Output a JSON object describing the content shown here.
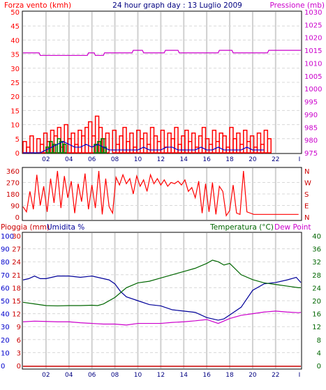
{
  "header": {
    "left": "Forza vento (kmh)",
    "center": "24 hour graph day : 13 Luglio 2009",
    "right": "Pressione (mb)"
  },
  "colors": {
    "wind": "#ff0000",
    "gust": "#0000cc",
    "wind_green": "#008000",
    "pressure": "#cc00cc",
    "rain": "#cc0000",
    "humidity": "#000099",
    "temperature": "#006600",
    "dewpoint": "#cc00cc",
    "grid_v": "#d0d0d0",
    "grid_h": "#d8d8d8"
  },
  "chart_data": [
    {
      "id": "wind_pressure",
      "type": "line",
      "title": "24 hour graph day : 13 Luglio 2009",
      "ylabel_left": "Forza vento (kmh)",
      "ylabel_right": "Pressione (mb)",
      "x_ticks": [
        "02",
        "04",
        "06",
        "08",
        "10",
        "12",
        "14",
        "16",
        "18",
        "20",
        "22"
      ],
      "ylim_left": [
        0,
        50
      ],
      "yticks_left": [
        0,
        5,
        10,
        15,
        20,
        25,
        30,
        35,
        40,
        45,
        50
      ],
      "ylim_right": [
        975,
        1030
      ],
      "yticks_right": [
        975,
        980,
        985,
        990,
        995,
        1000,
        1005,
        1010,
        1015,
        1020,
        1025,
        1030
      ],
      "pressure": {
        "hours": [
          0,
          1.4,
          1.5,
          2.0,
          2.1,
          5.6,
          5.7,
          6.2,
          6.3,
          7.0,
          7.1,
          9.5,
          9.6,
          10.4,
          10.5,
          12.3,
          12.4,
          13.5,
          13.6,
          17.0,
          17.1,
          18.2,
          18.3,
          21.3,
          21.4,
          21.8,
          21.9,
          24.5
        ],
        "values": [
          1014,
          1014,
          1013,
          1013,
          1013,
          1013,
          1014,
          1014,
          1013,
          1013,
          1014,
          1014,
          1015,
          1015,
          1014,
          1014,
          1015,
          1015,
          1014,
          1014,
          1015,
          1015,
          1014,
          1014,
          1015,
          1015,
          1015,
          1015
        ]
      },
      "wind_speed": {
        "hours": [
          0,
          0.3,
          0.6,
          0.9,
          1.2,
          1.5,
          1.8,
          2.1,
          2.4,
          2.7,
          3.0,
          3.3,
          3.6,
          3.9,
          4.2,
          4.5,
          4.8,
          5.1,
          5.4,
          5.7,
          6.0,
          6.3,
          6.6,
          6.9,
          7.2,
          7.5,
          7.8,
          8.1,
          8.4,
          8.7,
          9.0,
          9.3,
          9.6,
          9.9,
          10.2,
          10.5,
          10.8,
          11.1,
          11.4,
          11.7,
          12.0,
          12.3,
          12.6,
          12.9,
          13.2,
          13.5,
          13.8,
          14.1,
          14.4,
          14.7,
          15.0,
          15.3,
          15.6,
          15.9,
          16.2,
          16.5,
          16.8,
          17.1,
          17.4,
          17.7,
          18.0,
          18.3,
          18.6,
          18.9,
          19.2,
          19.5,
          19.8,
          20.1,
          20.4,
          20.7,
          21.0,
          21.3
        ],
        "values": [
          4,
          2,
          6,
          0,
          5,
          3,
          7,
          4,
          8,
          6,
          9,
          2,
          10,
          5,
          7,
          3,
          8,
          6,
          9,
          11,
          6,
          13,
          9,
          5,
          7,
          0,
          8,
          3,
          6,
          9,
          4,
          7,
          2,
          8,
          5,
          7,
          3,
          9,
          6,
          4,
          8,
          2,
          7,
          5,
          9,
          3,
          6,
          8,
          4,
          7,
          2,
          6,
          9,
          5,
          3,
          8,
          4,
          7,
          6,
          2,
          9,
          5,
          7,
          3,
          8,
          4,
          6,
          2,
          7,
          3,
          8,
          5
        ]
      },
      "wind_green": {
        "hours": [
          2.0,
          2.3,
          2.6,
          3.0,
          3.2,
          3.5,
          6.2,
          6.5,
          6.8,
          7.0
        ],
        "values": [
          2,
          4,
          3,
          5,
          4,
          3,
          3,
          4,
          5,
          2
        ]
      },
      "gust": {
        "hours": [
          0,
          0.5,
          1.0,
          1.5,
          2.0,
          2.5,
          3.0,
          3.5,
          4.0,
          4.5,
          5.0,
          5.5,
          6.0,
          6.5,
          7.0,
          7.5,
          8.0,
          8.5,
          9.0,
          9.5,
          10.0,
          10.5,
          11.0,
          11.5,
          12.0,
          12.5,
          13.0,
          13.5,
          14.0,
          14.5,
          15.0,
          15.5,
          16.0,
          16.5,
          17.0,
          17.5,
          18.0,
          18.5,
          19.0,
          19.5,
          20.0,
          20.5,
          21.0
        ],
        "values": [
          0,
          0,
          0,
          0,
          1,
          2,
          3,
          4,
          3,
          2,
          2,
          3,
          2,
          3,
          2,
          1,
          1,
          1,
          1,
          1,
          1,
          2,
          1,
          1,
          1,
          2,
          2,
          1,
          1,
          1,
          1,
          2,
          1,
          1,
          2,
          1,
          1,
          1,
          1,
          2,
          1,
          1,
          1
        ]
      }
    },
    {
      "id": "wind_direction",
      "type": "line",
      "ylim": [
        0,
        360
      ],
      "yticks": [
        0,
        90,
        180,
        270,
        360
      ],
      "y_labels_right": [
        "N",
        "W",
        "S",
        "E",
        "N"
      ],
      "direction": {
        "hours": [
          0,
          0.3,
          0.6,
          0.9,
          1.2,
          1.5,
          1.8,
          2.1,
          2.4,
          2.7,
          3.0,
          3.3,
          3.6,
          3.9,
          4.2,
          4.5,
          4.8,
          5.1,
          5.4,
          5.7,
          6.0,
          6.3,
          6.6,
          6.9,
          7.2,
          7.5,
          7.8,
          8.1,
          8.4,
          8.7,
          9.0,
          9.3,
          9.6,
          9.9,
          10.2,
          10.5,
          10.8,
          11.1,
          11.4,
          11.7,
          12.0,
          12.3,
          12.6,
          12.9,
          13.2,
          13.5,
          13.8,
          14.1,
          14.4,
          14.7,
          15.0,
          15.3,
          15.6,
          15.9,
          16.2,
          16.5,
          16.8,
          17.1,
          17.4,
          17.7,
          18.0,
          18.3,
          18.6,
          18.9,
          19.2,
          19.5,
          19.8,
          20.1,
          20.4,
          20.7,
          21.0,
          21.3,
          21.6,
          22.0,
          23.0,
          24.0
        ],
        "values": [
          80,
          40,
          200,
          60,
          330,
          90,
          240,
          40,
          300,
          110,
          360,
          70,
          320,
          150,
          280,
          30,
          260,
          120,
          340,
          60,
          250,
          70,
          360,
          20,
          300,
          80,
          30,
          310,
          250,
          330,
          260,
          300,
          180,
          320,
          240,
          290,
          200,
          330,
          260,
          300,
          250,
          290,
          240,
          270,
          260,
          280,
          250,
          290,
          200,
          230,
          150,
          280,
          30,
          260,
          40,
          270,
          20,
          240,
          200,
          10,
          50,
          250,
          30,
          20,
          360,
          40,
          30,
          20,
          20,
          20,
          20,
          20,
          20,
          20,
          20,
          20
        ]
      }
    },
    {
      "id": "rain_humidity_temp",
      "type": "line",
      "ylabel_left": "Pioggia (mm)",
      "ylabel_humidity": "Umidita %",
      "ylabel_right": "Temperatura (°C)",
      "ylabel_right2": "Dew Point",
      "ylim_rain": [
        0,
        30
      ],
      "yticks_rain": [
        0,
        3,
        6,
        9,
        12,
        15,
        18,
        21,
        24,
        27,
        30
      ],
      "ylim_humidity": [
        0,
        100
      ],
      "yticks_humidity": [
        0,
        10,
        20,
        30,
        40,
        50,
        60,
        70,
        80,
        90,
        100
      ],
      "ylim_temp": [
        0,
        40
      ],
      "yticks_temp": [
        0,
        4,
        8,
        12,
        16,
        20,
        24,
        28,
        32,
        36,
        40
      ],
      "humidity": {
        "hours": [
          0,
          0.5,
          1,
          1.5,
          2,
          3,
          4,
          5,
          6,
          7,
          7.5,
          8,
          8.5,
          9,
          10,
          11,
          12,
          13,
          14,
          15,
          16,
          17,
          17.5,
          18,
          19,
          20,
          21,
          22,
          23,
          23.8,
          24.2
        ],
        "values": [
          66,
          67,
          69,
          67,
          67,
          69,
          69,
          68,
          69,
          67,
          66,
          63,
          57,
          53,
          50,
          47,
          46,
          43,
          42,
          41,
          37,
          35,
          36,
          39,
          45,
          58,
          63,
          64,
          66,
          68,
          64
        ]
      },
      "temperature": {
        "hours": [
          0,
          1,
          2,
          3,
          4,
          5,
          6,
          6.5,
          7,
          8,
          9,
          10,
          11,
          12,
          13,
          14,
          15,
          16,
          16.5,
          17,
          17.5,
          18,
          19,
          20,
          21,
          22,
          23,
          24,
          24.2
        ],
        "values": [
          19.5,
          19,
          18.5,
          18.4,
          18.5,
          18.5,
          18.6,
          18.5,
          19,
          21,
          24,
          25.5,
          26,
          27,
          28,
          29,
          30,
          31.5,
          32.5,
          32,
          31,
          31.5,
          28,
          26.5,
          25.5,
          25,
          24.5,
          24,
          24
        ]
      },
      "dewpoint": {
        "hours": [
          0,
          1,
          2,
          3,
          4,
          5,
          6,
          7,
          8,
          9,
          10,
          11,
          12,
          13,
          14,
          15,
          16,
          17,
          18,
          19,
          20,
          21,
          22,
          23,
          24,
          24.2
        ],
        "values": [
          13.5,
          13.7,
          13.6,
          13.5,
          13.5,
          13.2,
          13,
          12.8,
          12.8,
          12.5,
          13,
          13,
          13,
          13.3,
          13.5,
          13.8,
          14.2,
          13,
          14.5,
          15.5,
          16,
          16.5,
          16.8,
          16.5,
          16.3,
          16.4
        ]
      },
      "rain": {
        "hours": [
          0,
          24.2
        ],
        "values": [
          0,
          0
        ]
      }
    }
  ]
}
